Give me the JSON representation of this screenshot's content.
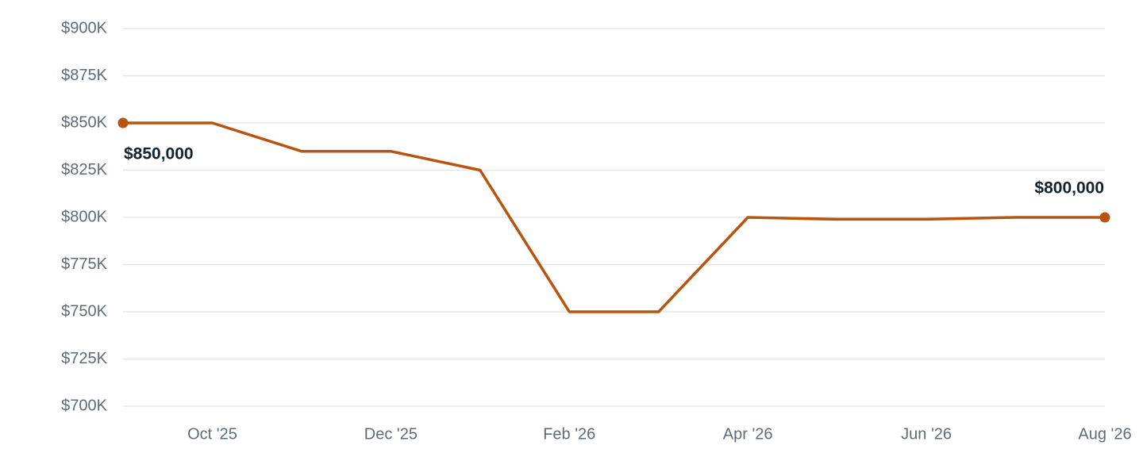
{
  "chart_data": {
    "type": "line",
    "categories": [
      null,
      "Oct '25",
      null,
      "Dec '25",
      null,
      "Feb '26",
      null,
      "Apr '26",
      null,
      "Jun '26",
      null,
      "Aug '26"
    ],
    "values": [
      850000,
      850000,
      835000,
      835000,
      825000,
      750000,
      750000,
      800000,
      799000,
      799000,
      800000,
      800000
    ],
    "value_labels": [
      "$850,000",
      null,
      null,
      null,
      null,
      null,
      null,
      null,
      null,
      null,
      null,
      "$800,000"
    ],
    "color": "#b8540f",
    "ylim": [
      700000,
      900000
    ],
    "yticks": [
      {
        "value": 700000,
        "label": "$700K"
      },
      {
        "value": 725000,
        "label": "$725K"
      },
      {
        "value": 750000,
        "label": "$750K"
      },
      {
        "value": 775000,
        "label": "$775K"
      },
      {
        "value": 800000,
        "label": "$800K"
      },
      {
        "value": 825000,
        "label": "$825K"
      },
      {
        "value": 850000,
        "label": "$850K"
      },
      {
        "value": 875000,
        "label": "$875K"
      },
      {
        "value": 900000,
        "label": "$900K"
      }
    ],
    "grid": true
  }
}
